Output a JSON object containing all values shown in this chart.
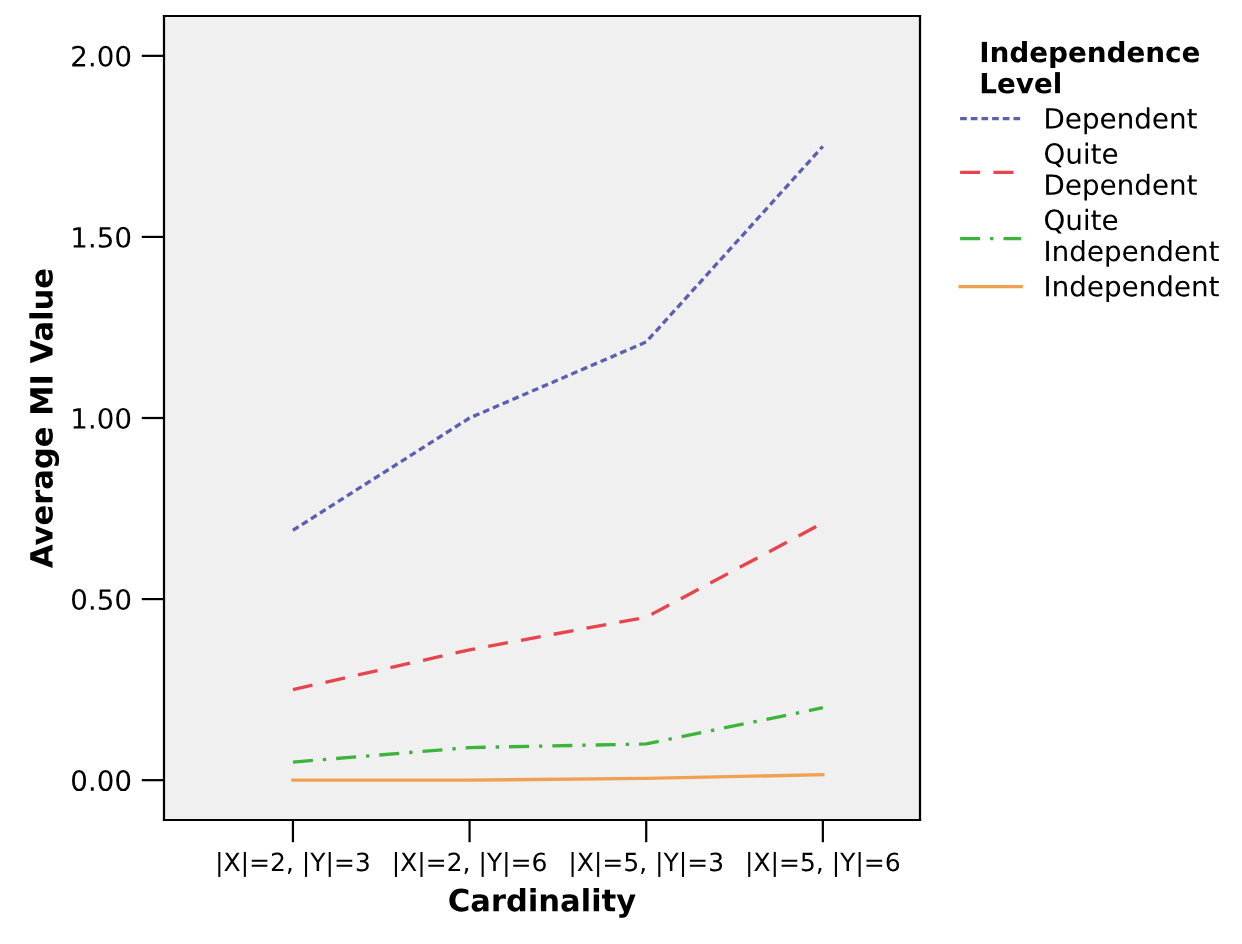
{
  "chart_data": {
    "type": "line",
    "xlabel": "Cardinality",
    "ylabel": "Average MI Value",
    "legend_title": "Independence\nLevel",
    "legend": "right",
    "categories": [
      "|X|=2, |Y|=3",
      "|X|=2, |Y|=6",
      "|X|=5, |Y|=3",
      "|X|=5, |Y|=6"
    ],
    "series": [
      {
        "name": "Dependent",
        "color": "#5b5fb0",
        "line_style": "dotted",
        "values": [
          0.69,
          1.0,
          1.21,
          1.75
        ]
      },
      {
        "name": "Quite\nDependent",
        "color": "#e8444e",
        "line_style": "dashed",
        "values": [
          0.25,
          0.36,
          0.45,
          0.71
        ]
      },
      {
        "name": "Quite\nIndependent",
        "color": "#3cb43c",
        "line_style": "dashdot",
        "values": [
          0.05,
          0.09,
          0.1,
          0.2
        ]
      },
      {
        "name": "Independent",
        "color": "#f0a050",
        "line_style": "solid",
        "values": [
          0.0,
          0.0,
          0.005,
          0.015
        ]
      }
    ],
    "ylim": [
      -0.11,
      2.11
    ],
    "yticks": [
      {
        "value": 0,
        "label": "0.00"
      },
      {
        "value": 0.5,
        "label": "0.50"
      },
      {
        "value": 1.0,
        "label": "1.00"
      },
      {
        "value": 1.5,
        "label": "1.50"
      },
      {
        "value": 2.0,
        "label": "2.00"
      }
    ],
    "grid": false,
    "marker": "none"
  }
}
